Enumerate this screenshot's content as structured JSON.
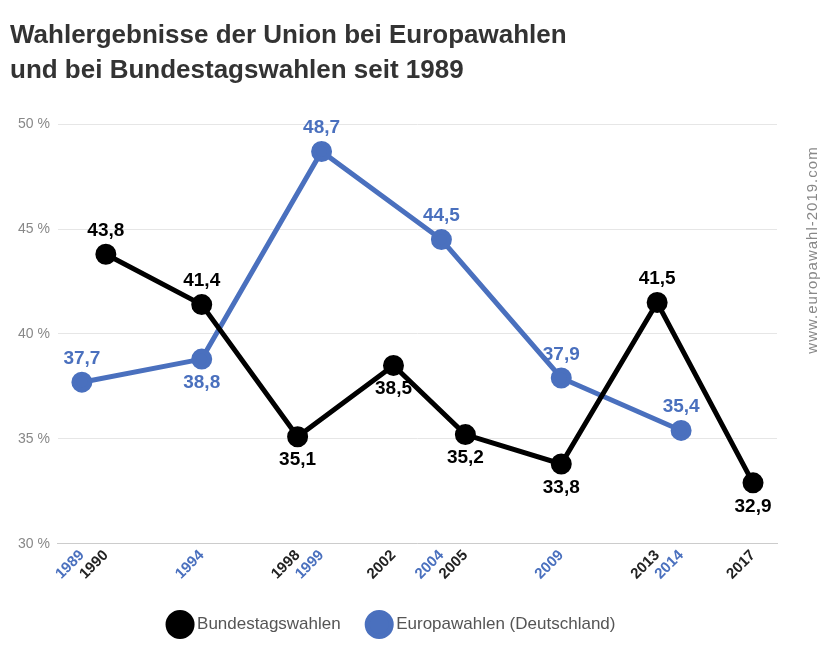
{
  "chart_data": {
    "type": "line",
    "title": [
      "Wahlergebnisse der Union bei Europawahlen",
      "und bei Bundestagswahlen seit 1989"
    ],
    "source": "www.europawahl-2019.com",
    "series": [
      {
        "name": "Bundestagswahlen",
        "color": "#000000",
        "x": [
          1990,
          1994,
          1998,
          2002,
          2005,
          2009,
          2013,
          2017
        ],
        "values": [
          43.8,
          41.4,
          35.1,
          38.5,
          35.2,
          33.8,
          41.5,
          32.9
        ],
        "value_labels": [
          "43,8",
          "41,4",
          "35,1",
          "38,5",
          "35,2",
          "33,8",
          "41,5",
          "32,9"
        ]
      },
      {
        "name": "Europawahlen (Deutschland)",
        "color": "#4a70be",
        "x": [
          1989,
          1994,
          1999,
          2004,
          2009,
          2014
        ],
        "values": [
          37.7,
          38.8,
          48.7,
          44.5,
          37.9,
          35.4
        ],
        "value_labels": [
          "37,7",
          "38,8",
          "48,7",
          "44,5",
          "37,9",
          "35,4"
        ]
      }
    ],
    "xlim": [
      1988,
      2018
    ],
    "xticks": [
      1989,
      1990,
      1994,
      1998,
      1999,
      2002,
      2004,
      2005,
      2009,
      2013,
      2014,
      2017
    ],
    "ylim": [
      30,
      50
    ],
    "yticks": [
      {
        "value": 30,
        "label": "30 %"
      },
      {
        "value": 35,
        "label": "35 %"
      },
      {
        "value": 40,
        "label": "40 %"
      },
      {
        "value": 45,
        "label": "45 %"
      },
      {
        "value": 50,
        "label": "50 %"
      }
    ],
    "grid": true,
    "data_labels": true,
    "legend": "bottom",
    "marker": "circle"
  }
}
